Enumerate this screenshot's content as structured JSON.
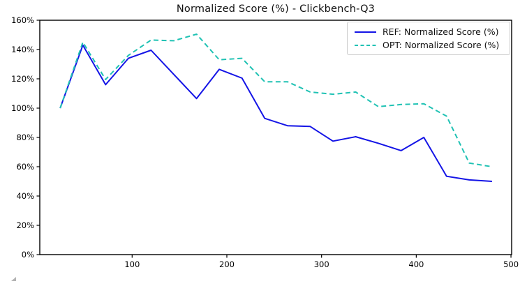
{
  "title": "Normalized Score (%) - Clickbench-Q3",
  "chart_data": {
    "type": "line",
    "title": "Normalized Score (%) - Clickbench-Q3",
    "xlabel": "",
    "ylabel": "",
    "x": [
      24,
      48,
      72,
      96,
      120,
      144,
      168,
      192,
      216,
      240,
      264,
      288,
      312,
      336,
      360,
      384,
      408,
      432,
      456,
      480
    ],
    "series": [
      {
        "name": "REF: Normalized Score (%)",
        "color": "#1414e6",
        "style": "solid",
        "values": [
          100,
          143,
          116,
          134,
          139.5,
          123,
          106.5,
          126.5,
          120.5,
          93,
          88,
          87.5,
          77.5,
          80.5,
          76,
          71,
          80,
          53.5,
          51,
          50
        ]
      },
      {
        "name": "OPT: Normalized Score (%)",
        "color": "#20c2b4",
        "style": "dashed",
        "values": [
          100,
          145,
          119.5,
          136,
          146.5,
          146,
          150.5,
          133,
          134,
          118,
          118,
          111,
          109.5,
          111,
          101,
          102.5,
          103,
          94.5,
          62.5,
          60
        ]
      }
    ],
    "xlim": [
      2.5,
      500.7
    ],
    "ylim": [
      0,
      160
    ],
    "x_ticks": [
      100,
      200,
      300,
      400,
      500
    ],
    "y_ticks": [
      {
        "value": 0,
        "label": "0%"
      },
      {
        "value": 20,
        "label": "20%"
      },
      {
        "value": 40,
        "label": "40%"
      },
      {
        "value": 60,
        "label": "60%"
      },
      {
        "value": 80,
        "label": "80%"
      },
      {
        "value": 100,
        "label": "100%"
      },
      {
        "value": 120,
        "label": "120%"
      },
      {
        "value": 140,
        "label": "140%"
      },
      {
        "value": 160,
        "label": "160%"
      }
    ],
    "grid": false,
    "legend_position": "upper right",
    "spine_color": "#000000",
    "tick_label_color": "#000000"
  }
}
